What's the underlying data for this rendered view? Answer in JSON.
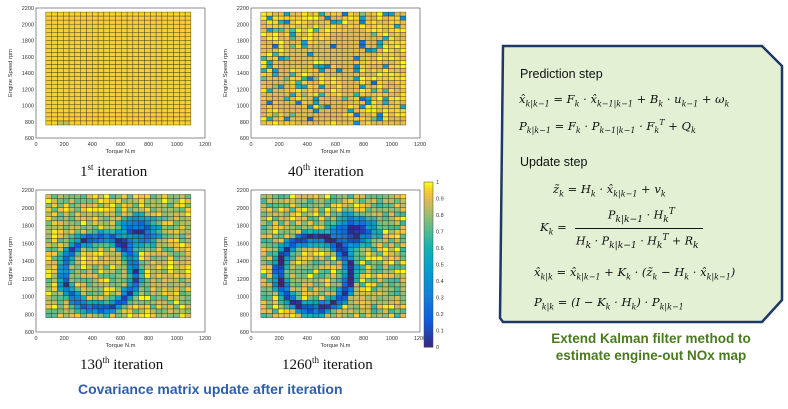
{
  "panels": [
    {
      "id": "p1",
      "caption": "1",
      "caption_sup": "st",
      "caption_rest": " iteration",
      "ylabel": "Engine Speed rpm",
      "xlabel": "Torque N.m",
      "yticks": [
        "2200",
        "2000",
        "1800",
        "1600",
        "1400",
        "1200",
        "1000",
        "800",
        "600"
      ],
      "xticks": [
        "0",
        "200",
        "400",
        "600",
        "800",
        "1000",
        "1200"
      ]
    },
    {
      "id": "p2",
      "caption": "40",
      "caption_sup": "th",
      "caption_rest": " iteration",
      "ylabel": "Engine Speed rpm",
      "xlabel": "Torque N.m",
      "yticks": [
        "2200",
        "2000",
        "1800",
        "1600",
        "1400",
        "1200",
        "1000",
        "800",
        "600"
      ],
      "xticks": [
        "0",
        "200",
        "400",
        "600",
        "800",
        "1000",
        "1200"
      ]
    },
    {
      "id": "p3",
      "caption": "130",
      "caption_sup": "th",
      "caption_rest": "  iteration",
      "ylabel": "Engine Speed rpm",
      "xlabel": "Torque N.m",
      "yticks": [
        "2200",
        "2000",
        "1800",
        "1600",
        "1400",
        "1200",
        "1000",
        "800",
        "600"
      ],
      "xticks": [
        "0",
        "200",
        "400",
        "600",
        "800",
        "1000",
        "1200"
      ]
    },
    {
      "id": "p4",
      "caption": "1260",
      "caption_sup": "th",
      "caption_rest": "  iteration",
      "ylabel": "Engine Speed rpm",
      "xlabel": "Torque N.m",
      "yticks": [
        "2200",
        "2000",
        "1800",
        "1600",
        "1400",
        "1200",
        "1000",
        "800",
        "600"
      ],
      "xticks": [
        "0",
        "200",
        "400",
        "600",
        "800",
        "1000",
        "1200"
      ]
    }
  ],
  "colorbar": {
    "ticks": [
      "1",
      "0.9",
      "0.8",
      "0.7",
      "0.6",
      "0.5",
      "0.4",
      "0.3",
      "0.2",
      "0.1",
      "0"
    ]
  },
  "bottom_caption": "Covariance matrix update after iteration",
  "kalman": {
    "prediction_label": "Prediction step",
    "update_label": "Update step",
    "caption_line1": "Extend Kalman filter method to",
    "caption_line2": "estimate engine-out NOx map"
  }
}
